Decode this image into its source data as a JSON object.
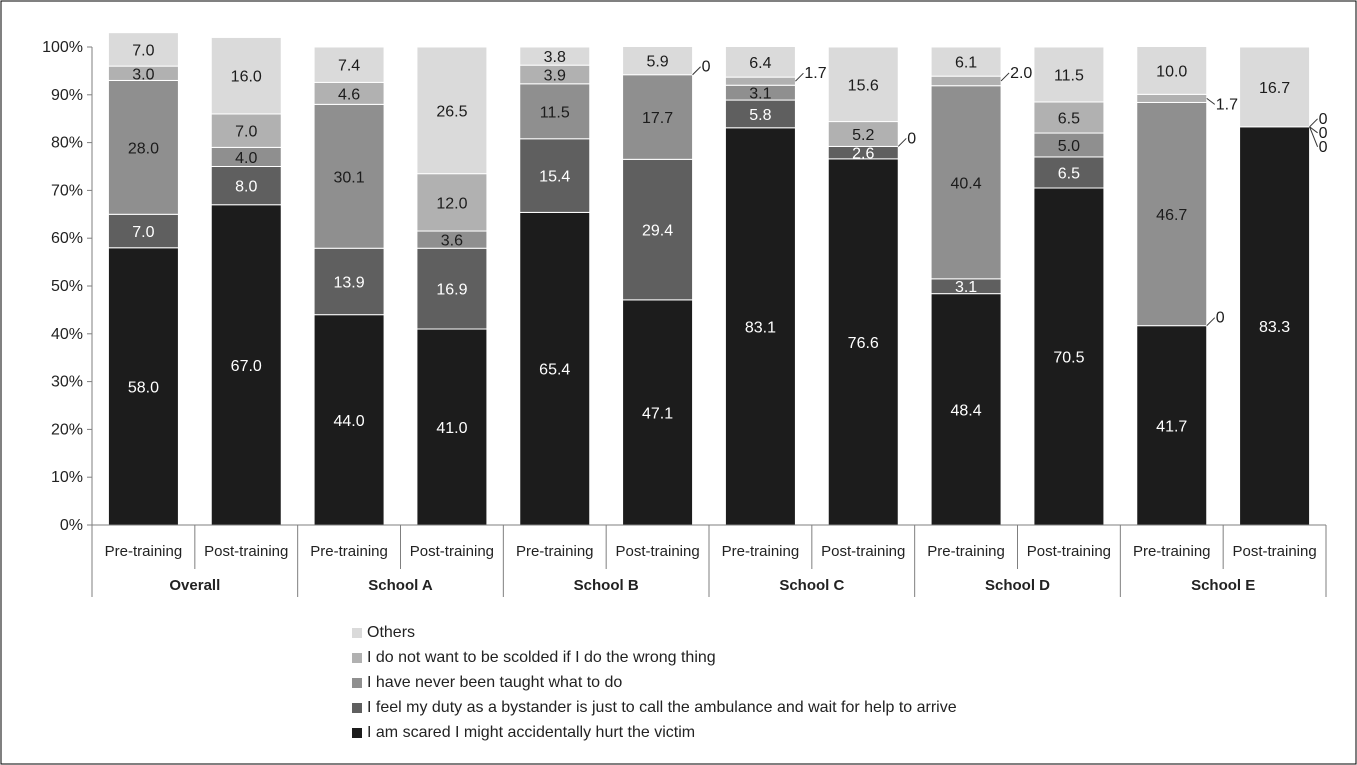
{
  "chart_data": {
    "type": "bar",
    "stacked": true,
    "ylim": [
      0,
      100
    ],
    "y_ticks": [
      "0%",
      "10%",
      "20%",
      "30%",
      "40%",
      "50%",
      "60%",
      "70%",
      "80%",
      "90%",
      "100%"
    ],
    "groups": [
      {
        "name": "Overall",
        "categories": [
          "Pre-training",
          "Post-training"
        ]
      },
      {
        "name": "School A",
        "categories": [
          "Pre-training",
          "Post-training"
        ]
      },
      {
        "name": "School B",
        "categories": [
          "Pre-training",
          "Post-training"
        ]
      },
      {
        "name": "School C",
        "categories": [
          "Pre-training",
          "Post-training"
        ]
      },
      {
        "name": "School D",
        "categories": [
          "Pre-training",
          "Post-training"
        ]
      },
      {
        "name": "School E",
        "categories": [
          "Pre-training",
          "Post-training"
        ]
      }
    ],
    "series": [
      {
        "name": "I am scared I might accidentally hurt the victim",
        "color": "#1c1c1c",
        "label_color": "#ffffff",
        "values": [
          58.0,
          67.0,
          44.0,
          41.0,
          65.4,
          47.1,
          83.1,
          76.6,
          48.4,
          70.5,
          41.7,
          83.3
        ],
        "labels": [
          "58.0",
          "67.0",
          "44.0",
          "41.0",
          "65.4",
          "47.1",
          "83.1",
          "76.6",
          "48.4",
          "70.5",
          "41.7",
          "83.3"
        ]
      },
      {
        "name": "I feel my duty as a bystander is just to call the ambulance and wait for help to arrive",
        "color": "#5f5f5f",
        "label_color": "#ffffff",
        "values": [
          7.0,
          8.0,
          13.9,
          16.9,
          15.4,
          29.4,
          5.8,
          2.6,
          3.1,
          6.5,
          0,
          0
        ],
        "labels": [
          "7.0",
          "8.0",
          "13.9",
          "16.9",
          "15.4",
          "29.4",
          "5.8",
          "2.6",
          "3.1",
          "6.5",
          "0",
          "0"
        ]
      },
      {
        "name": "I have never been taught what to do",
        "color": "#8f8f8f",
        "label_color": "#1c1c1c",
        "values": [
          28.0,
          4.0,
          30.1,
          3.6,
          11.5,
          17.7,
          3.1,
          0,
          40.4,
          5.0,
          46.7,
          0
        ],
        "labels": [
          "28.0",
          "4.0",
          "30.1",
          "3.6",
          "11.5",
          "17.7",
          "3.1",
          "0",
          "40.4",
          "5.0",
          "46.7",
          "0"
        ]
      },
      {
        "name": "I do not want to be scolded if I do the wrong thing",
        "color": "#b1b1b1",
        "label_color": "#1c1c1c",
        "values": [
          3.0,
          7.0,
          4.6,
          12.0,
          3.9,
          0,
          1.7,
          5.2,
          2.0,
          6.5,
          1.7,
          0
        ],
        "labels": [
          "3.0",
          "7.0",
          "4.6",
          "12.0",
          "3.9",
          "0",
          "1.7",
          "5.2",
          "2.0",
          "6.5",
          "1.7",
          "0"
        ]
      },
      {
        "name": "Others",
        "color": "#dadada",
        "label_color": "#1c1c1c",
        "values": [
          7.0,
          16.0,
          7.4,
          26.5,
          3.8,
          5.9,
          6.4,
          15.6,
          6.1,
          11.5,
          10.0,
          16.7
        ],
        "labels": [
          "7.0",
          "16.0",
          "7.4",
          "26.5",
          "3.8",
          "5.9",
          "6.4",
          "15.6",
          "6.1",
          "11.5",
          "10.0",
          "16.7"
        ]
      }
    ],
    "legend_position": "bottom",
    "grid": false
  }
}
